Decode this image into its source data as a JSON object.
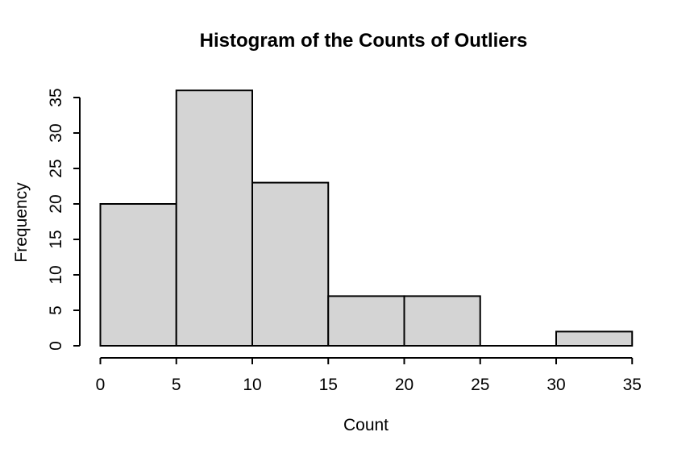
{
  "figure": {
    "background": "#ffffff"
  },
  "chart_data": {
    "type": "bar",
    "subtype": "histogram",
    "title": "Histogram of the Counts of Outliers",
    "xlabel": "Count",
    "ylabel": "Frequency",
    "bin_edges": [
      0,
      5,
      10,
      15,
      20,
      25,
      30,
      35
    ],
    "counts": [
      20,
      36,
      23,
      7,
      7,
      0,
      2
    ],
    "x_ticks": [
      0,
      5,
      10,
      15,
      20,
      25,
      30,
      35
    ],
    "y_ticks": [
      0,
      5,
      10,
      15,
      20,
      25,
      30,
      35
    ],
    "xlim": [
      0,
      35
    ],
    "ylim": [
      0,
      36
    ],
    "grid": false,
    "legend": false,
    "bar_fill": "#d4d4d4",
    "bar_stroke": "#000000",
    "axis_color": "#000000",
    "text_color": "#000000"
  }
}
